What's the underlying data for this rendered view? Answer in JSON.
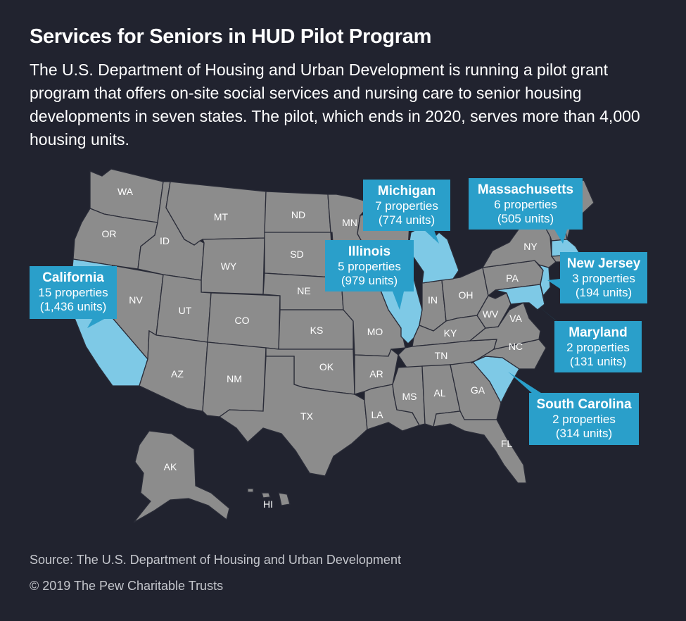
{
  "header": {
    "title": "Services for Seniors in HUD Pilot Program",
    "subtitle": "The U.S. Department of Housing and Urban Development is running a pilot grant program that offers on-site social services and nursing care to senior housing developments in seven states. The pilot, which ends in 2020, serves more than 4,000 housing units."
  },
  "colors": {
    "background": "#21232f",
    "state_default": "#8c8c8c",
    "state_highlight": "#7ec9e6",
    "callout": "#2a9fca"
  },
  "state_labels": {
    "WA": "WA",
    "OR": "OR",
    "CA_abbr": "",
    "ID": "ID",
    "NV": "NV",
    "MT": "MT",
    "WY": "WY",
    "UT": "UT",
    "AZ": "AZ",
    "CO": "CO",
    "NM": "NM",
    "ND": "ND",
    "SD": "SD",
    "NE": "NE",
    "KS": "KS",
    "OK": "OK",
    "TX": "TX",
    "MN": "MN",
    "MO": "MO",
    "AR": "AR",
    "LA": "LA",
    "MS": "MS",
    "AL": "AL",
    "GA": "GA",
    "FL": "FL",
    "TN": "TN",
    "KY": "KY",
    "IN": "IN",
    "OH": "OH",
    "WV": "WV",
    "VA": "VA",
    "NC": "NC",
    "PA": "PA",
    "NY": "NY",
    "AK": "AK",
    "HI": "HI"
  },
  "callouts": {
    "california": {
      "name": "California",
      "properties": "15 properties",
      "units": "(1,436 units)"
    },
    "michigan": {
      "name": "Michigan",
      "properties": "7 properties",
      "units": "(774 units)"
    },
    "illinois": {
      "name": "Illinois",
      "properties": "5 properties",
      "units": "(979 units)"
    },
    "massachusetts": {
      "name": "Massachusetts",
      "properties": "6 properties",
      "units": "(505 units)"
    },
    "new_jersey": {
      "name": "New Jersey",
      "properties": "3 properties",
      "units": "(194 units)"
    },
    "maryland": {
      "name": "Maryland",
      "properties": "2 properties",
      "units": "(131 units)"
    },
    "south_carolina": {
      "name": "South Carolina",
      "properties": "2 properties",
      "units": "(314 units)"
    }
  },
  "footer": {
    "source": "Source: The U.S. Department of Housing and Urban Development",
    "copyright": "© 2019 The Pew Charitable Trusts"
  }
}
